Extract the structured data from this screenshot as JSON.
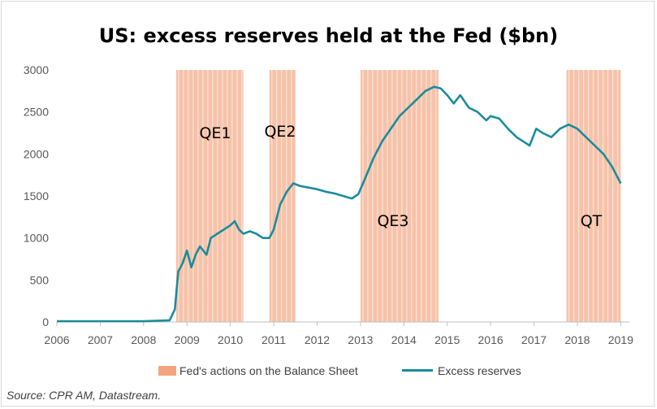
{
  "chart_data": {
    "type": "line",
    "title": "US: excess reserves held at the Fed ($bn)",
    "source": "Source: CPR AM, Datastream.",
    "ylim": [
      0,
      3000
    ],
    "yticks": [
      0,
      500,
      1000,
      1500,
      2000,
      2500,
      3000
    ],
    "xlim": [
      2006,
      2019.2
    ],
    "xticks": [
      "2006",
      "2007",
      "2008",
      "2009",
      "2010",
      "2011",
      "2012",
      "2013",
      "2014",
      "2015",
      "2016",
      "2017",
      "2018",
      "2019"
    ],
    "grid": false,
    "legend_position": "bottom",
    "legend": {
      "shaded_label": "Fed's actions on the Balance Sheet",
      "line_label": "Excess reserves"
    },
    "shaded_periods": [
      {
        "label": "QE1",
        "start": 2008.75,
        "end": 2010.3
      },
      {
        "label": "QE2",
        "start": 2010.9,
        "end": 2011.5
      },
      {
        "label": "QE3",
        "start": 2013.0,
        "end": 2014.8
      },
      {
        "label": "QT",
        "start": 2017.75,
        "end": 2019.0
      }
    ],
    "series": [
      {
        "name": "Excess reserves",
        "color": "#1a8c9c",
        "x": [
          2006.0,
          2007.0,
          2008.0,
          2008.6,
          2008.72,
          2008.8,
          2008.9,
          2009.0,
          2009.1,
          2009.2,
          2009.3,
          2009.45,
          2009.55,
          2009.7,
          2009.85,
          2010.0,
          2010.1,
          2010.2,
          2010.3,
          2010.45,
          2010.6,
          2010.75,
          2010.9,
          2011.0,
          2011.15,
          2011.3,
          2011.45,
          2011.6,
          2011.8,
          2012.0,
          2012.2,
          2012.4,
          2012.6,
          2012.8,
          2012.95,
          2013.1,
          2013.3,
          2013.5,
          2013.7,
          2013.9,
          2014.1,
          2014.3,
          2014.5,
          2014.7,
          2014.85,
          2015.0,
          2015.15,
          2015.3,
          2015.5,
          2015.7,
          2015.9,
          2016.0,
          2016.2,
          2016.4,
          2016.6,
          2016.75,
          2016.9,
          2017.05,
          2017.2,
          2017.4,
          2017.6,
          2017.8,
          2018.0,
          2018.2,
          2018.4,
          2018.6,
          2018.8,
          2018.95,
          2019.0
        ],
        "values": [
          10,
          10,
          10,
          20,
          150,
          600,
          700,
          850,
          650,
          800,
          900,
          800,
          1000,
          1050,
          1100,
          1150,
          1200,
          1100,
          1050,
          1080,
          1050,
          1000,
          1000,
          1100,
          1400,
          1550,
          1650,
          1620,
          1600,
          1580,
          1550,
          1530,
          1500,
          1470,
          1520,
          1700,
          1950,
          2150,
          2300,
          2450,
          2550,
          2650,
          2750,
          2800,
          2780,
          2700,
          2600,
          2700,
          2550,
          2500,
          2400,
          2450,
          2420,
          2300,
          2200,
          2150,
          2100,
          2300,
          2250,
          2200,
          2300,
          2350,
          2300,
          2200,
          2100,
          2000,
          1850,
          1700,
          1650
        ]
      }
    ]
  }
}
